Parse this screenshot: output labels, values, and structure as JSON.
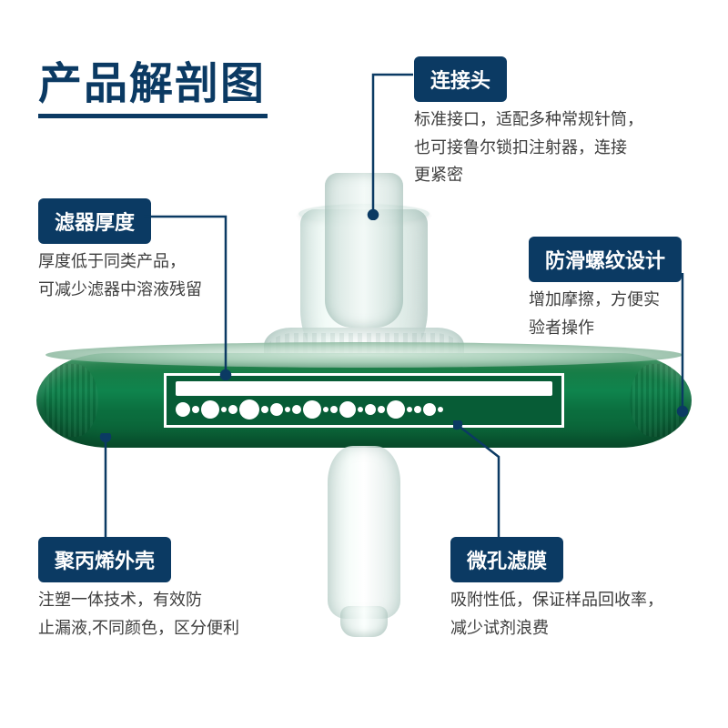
{
  "title": "产品解剖图",
  "callouts": {
    "connector": {
      "tag": "连接头",
      "desc": "标准接口，适配多种常规针筒，\n也可接鲁尔锁扣注射器，连接\n更紧密"
    },
    "thickness": {
      "tag": "滤器厚度",
      "desc": "厚度低于同类产品，\n可减少滤器中溶液残留"
    },
    "thread": {
      "tag": "防滑螺纹设计",
      "desc": "增加摩擦，方便实\n验者操作"
    },
    "shell": {
      "tag": "聚丙烯外壳",
      "desc": "注塑一体技术，有效防\n止漏液,不同颜色，区分便利"
    },
    "membrane": {
      "tag": "微孔滤膜",
      "desc": "吸附性低，保证样品回收率，\n减少试剂浪费"
    }
  },
  "colors": {
    "primary": "#0b3a63",
    "disc_green_main": "#0f844d",
    "disc_green_dark": "#075c36",
    "text": "#3d3d3d",
    "bg": "#ffffff"
  },
  "membrane_pores": [
    16,
    8,
    20,
    6,
    10,
    22,
    8,
    14,
    6,
    10,
    20,
    6,
    8,
    18,
    6,
    12,
    8,
    20,
    6,
    8,
    14,
    6
  ]
}
